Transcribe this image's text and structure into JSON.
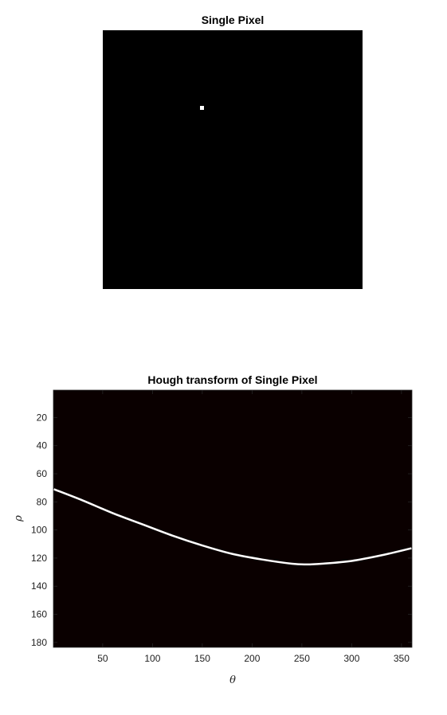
{
  "figure1": {
    "title": "Single Pixel"
  },
  "chart_data": {
    "type": "heatmap",
    "title": "Hough transform of Single Pixel",
    "xlabel": "θ",
    "ylabel": "ρ",
    "xlim": [
      0.5,
      360.5
    ],
    "ylim": [
      183.5,
      0.5
    ],
    "xticks": [
      50,
      100,
      150,
      200,
      250,
      300,
      350
    ],
    "yticks": [
      20,
      40,
      60,
      80,
      100,
      120,
      140,
      160,
      180
    ],
    "background_color": "#0a0000",
    "curve_color": "#ffffff",
    "curve": {
      "theta": [
        1,
        30,
        60,
        90,
        120,
        150,
        180,
        210,
        240,
        255,
        270,
        300,
        330,
        360
      ],
      "rho": [
        71,
        79,
        88,
        96,
        104,
        111,
        117,
        121,
        124,
        124.5,
        124,
        122,
        118,
        113
      ]
    }
  }
}
